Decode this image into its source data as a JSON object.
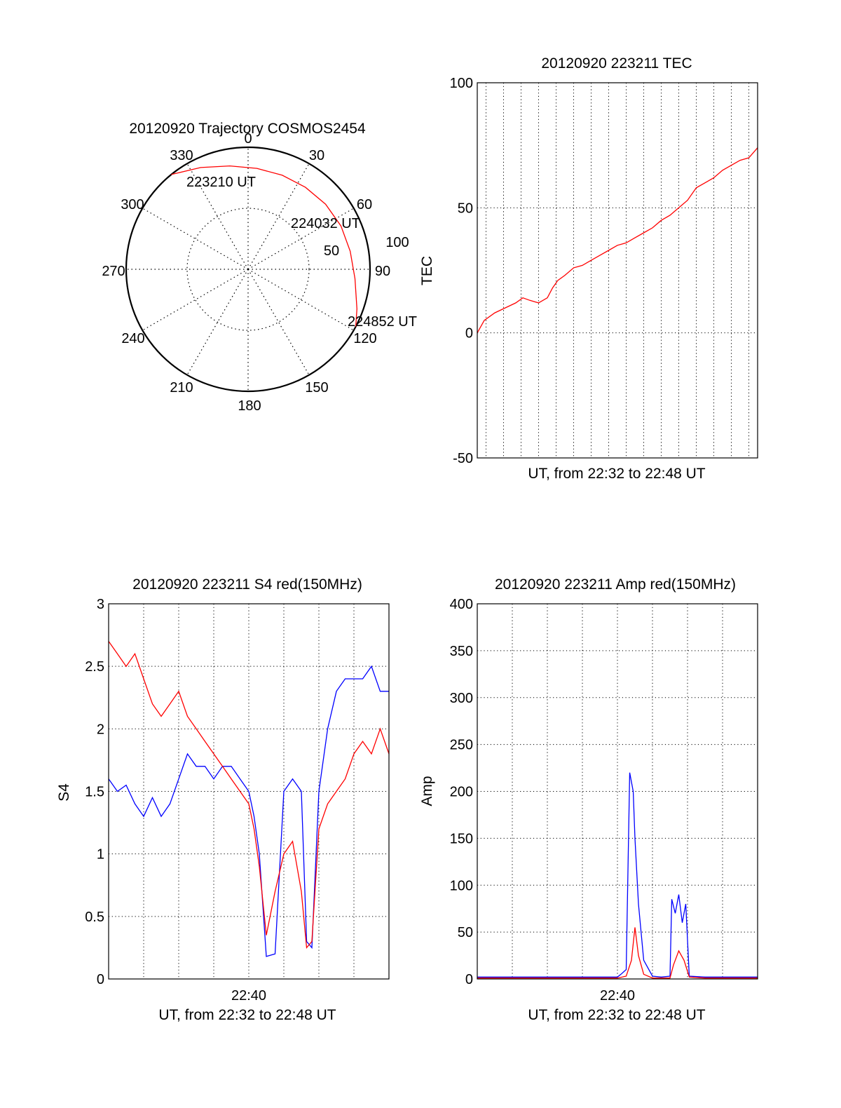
{
  "colors": {
    "red": "#ff0000",
    "blue": "#0000ff",
    "axis": "#000000",
    "grid": "#000000"
  },
  "chart_data": [
    {
      "id": "trajectory",
      "type": "polar",
      "title": "20120920 Trajectory COSMOS2454",
      "azimuth_labels": [
        "0",
        "30",
        "60",
        "90",
        "120",
        "150",
        "180",
        "210",
        "240",
        "270",
        "300",
        "330"
      ],
      "radial_labels": [
        "50",
        "100"
      ],
      "radial_values": [
        50,
        100
      ],
      "r_max": 100,
      "grid": "dotted",
      "track": {
        "color": "red",
        "points": [
          {
            "az": 321,
            "r": 100
          },
          {
            "az": 335,
            "r": 92
          },
          {
            "az": 350,
            "r": 86
          },
          {
            "az": 5,
            "r": 83
          },
          {
            "az": 20,
            "r": 82
          },
          {
            "az": 35,
            "r": 82
          },
          {
            "az": 50,
            "r": 83
          },
          {
            "az": 65,
            "r": 84
          },
          {
            "az": 80,
            "r": 85
          },
          {
            "az": 95,
            "r": 88
          },
          {
            "az": 110,
            "r": 95
          },
          {
            "az": 118,
            "r": 100
          }
        ]
      },
      "annotations": [
        {
          "text": "223210 UT",
          "az": 321,
          "r": 100
        },
        {
          "text": "224032 UT",
          "az": 55,
          "r": 83
        },
        {
          "text": "224852 UT",
          "az": 118,
          "r": 100
        }
      ]
    },
    {
      "id": "tec",
      "type": "line",
      "title": "20120920 223211 TEC",
      "xlabel": "UT, from 22:32 to 22:48 UT",
      "ylabel": "TEC",
      "xlim_min": [
        0,
        16
      ],
      "ylim": [
        -50,
        100
      ],
      "yticks": [
        -50,
        0,
        50,
        100
      ],
      "xgrid_min": [
        0.5,
        1.5,
        2.5,
        3.5,
        4.5,
        5.5,
        6.5,
        7.5,
        8.5,
        9.5,
        10.5,
        11.5,
        12.5,
        13.5,
        14.5,
        15.5
      ],
      "grid": "dotted",
      "series": [
        {
          "color": "red",
          "x_min": [
            0,
            0.4,
            1,
            1.6,
            2.2,
            2.6,
            3,
            3.5,
            4,
            4.3,
            4.6,
            5,
            5.5,
            6,
            6.5,
            7,
            7.5,
            8,
            8.5,
            9,
            9.5,
            10,
            10.5,
            11,
            11.5,
            12,
            12.5,
            13,
            13.5,
            14,
            14.5,
            15,
            15.5,
            16
          ],
          "y": [
            0,
            5,
            8,
            10,
            12,
            14,
            13,
            12,
            14,
            18,
            21,
            23,
            26,
            27,
            29,
            31,
            33,
            35,
            36,
            38,
            40,
            42,
            45,
            47,
            50,
            53,
            58,
            60,
            62,
            65,
            67,
            69,
            70,
            74
          ]
        }
      ]
    },
    {
      "id": "s4",
      "type": "line",
      "title": "20120920 223211 S4 red(150MHz)",
      "xlabel": "UT, from 22:32 to 22:48 UT",
      "ylabel": "S4",
      "xlim_min": [
        0,
        16
      ],
      "ylim": [
        0,
        3
      ],
      "yticks": [
        0,
        0.5,
        1,
        1.5,
        2,
        2.5,
        3
      ],
      "ytick_labels": [
        "0",
        "0.5",
        "1",
        "1.5",
        "2",
        "2.5",
        "3"
      ],
      "xtick_labels": [
        "22:40"
      ],
      "xtick_values_min": [
        8
      ],
      "xgrid_min": [
        2,
        4,
        6,
        8,
        10,
        12,
        14
      ],
      "grid": "dotted",
      "series": [
        {
          "color": "blue",
          "x_min": [
            0,
            0.5,
            1,
            1.5,
            2,
            2.5,
            3,
            3.5,
            4,
            4.5,
            5,
            5.5,
            6,
            6.5,
            7,
            7.5,
            8,
            8.3,
            8.6,
            9,
            9.5,
            10,
            10.5,
            11,
            11.3,
            11.6,
            12,
            12.5,
            13,
            13.5,
            14,
            14.5,
            15,
            15.5,
            16
          ],
          "y": [
            1.6,
            1.5,
            1.55,
            1.4,
            1.3,
            1.45,
            1.3,
            1.4,
            1.6,
            1.8,
            1.7,
            1.7,
            1.6,
            1.7,
            1.7,
            1.6,
            1.5,
            1.3,
            1.0,
            0.18,
            0.2,
            1.5,
            1.6,
            1.5,
            0.3,
            0.25,
            1.5,
            2.0,
            2.3,
            2.4,
            2.4,
            2.4,
            2.5,
            2.3,
            2.3
          ]
        },
        {
          "color": "red",
          "x_min": [
            0,
            0.5,
            1,
            1.5,
            2,
            2.5,
            3,
            3.5,
            4,
            4.5,
            5,
            5.5,
            6,
            6.5,
            7,
            7.5,
            8,
            8.3,
            8.6,
            9,
            9.5,
            10,
            10.5,
            11,
            11.3,
            11.6,
            12,
            12.5,
            13,
            13.5,
            14,
            14.5,
            15,
            15.5,
            16
          ],
          "y": [
            2.7,
            2.6,
            2.5,
            2.6,
            2.4,
            2.2,
            2.1,
            2.2,
            2.3,
            2.1,
            2.0,
            1.9,
            1.8,
            1.7,
            1.6,
            1.5,
            1.4,
            1.2,
            0.9,
            0.35,
            0.7,
            1.0,
            1.1,
            0.7,
            0.25,
            0.3,
            1.2,
            1.4,
            1.5,
            1.6,
            1.8,
            1.9,
            1.8,
            2.0,
            1.8
          ]
        }
      ]
    },
    {
      "id": "amp",
      "type": "line",
      "title": "20120920 223211 Amp red(150MHz)",
      "xlabel": "UT, from 22:32 to 22:48 UT",
      "ylabel": "Amp",
      "xlim_min": [
        0,
        16
      ],
      "ylim": [
        0,
        400
      ],
      "yticks": [
        0,
        50,
        100,
        150,
        200,
        250,
        300,
        350,
        400
      ],
      "xtick_labels": [
        "22:40"
      ],
      "xtick_values_min": [
        8
      ],
      "xgrid_min": [
        2,
        4,
        6,
        8,
        10,
        12,
        14
      ],
      "grid": "dotted",
      "series": [
        {
          "color": "blue",
          "x_min": [
            0,
            4,
            8,
            8.2,
            8.5,
            8.7,
            8.9,
            9.0,
            9.2,
            9.5,
            10,
            10.5,
            11,
            11.1,
            11.3,
            11.5,
            11.7,
            11.9,
            12.1,
            13,
            16
          ],
          "y": [
            2,
            2,
            2,
            5,
            10,
            220,
            200,
            150,
            80,
            20,
            3,
            2,
            3,
            85,
            70,
            90,
            60,
            80,
            3,
            2,
            2
          ]
        },
        {
          "color": "red",
          "x_min": [
            0,
            8,
            8.5,
            8.8,
            9.0,
            9.2,
            9.5,
            10,
            11,
            11.2,
            11.5,
            11.8,
            12.1,
            13,
            16
          ],
          "y": [
            1,
            1,
            3,
            20,
            55,
            25,
            5,
            1,
            1,
            15,
            30,
            20,
            2,
            1,
            1
          ]
        }
      ]
    }
  ]
}
